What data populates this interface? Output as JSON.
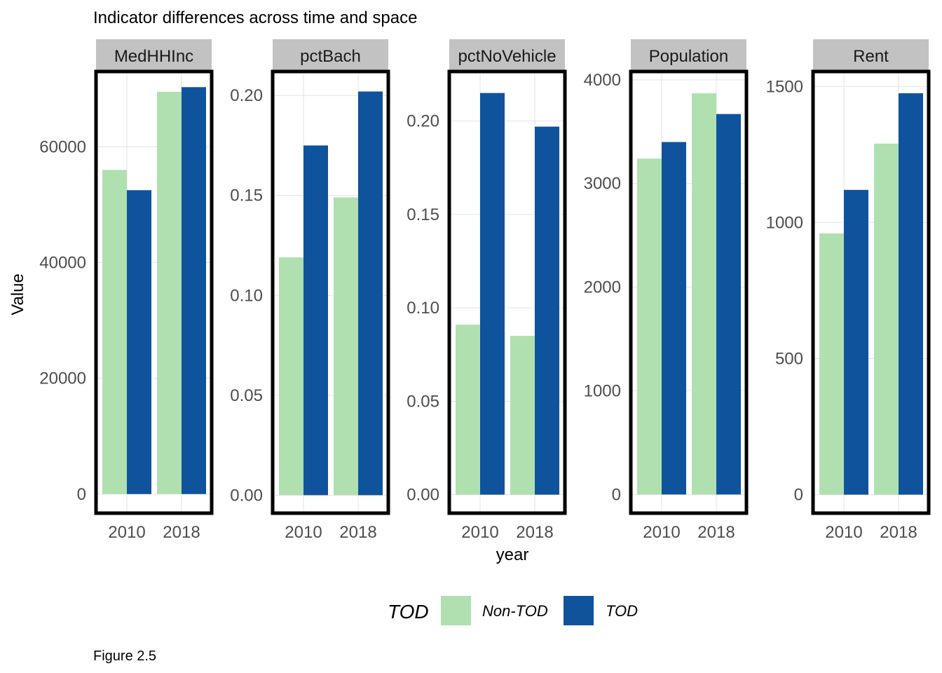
{
  "title": "Indicator differences across time and space",
  "caption": "Figure 2.5",
  "legend": {
    "title": "TOD",
    "items": [
      {
        "label": "Non-TOD",
        "color": "#b0e0b0"
      },
      {
        "label": "TOD",
        "color": "#0f539d"
      }
    ]
  },
  "chart_data": {
    "type": "bar",
    "layout": "faceted",
    "xlabel": "year",
    "ylabel": "Value",
    "categories": [
      "2010",
      "2018"
    ],
    "series_names": [
      "Non-TOD",
      "TOD"
    ],
    "colors": {
      "Non-TOD": "#b0e0b0",
      "TOD": "#0f539d"
    },
    "grid": true,
    "legend_position": "bottom",
    "facets": [
      {
        "label": "MedHHInc",
        "ylim": [
          -3300,
          73000
        ],
        "yticks": [
          0,
          20000,
          40000,
          60000
        ],
        "ytick_labels": [
          "0",
          "20000",
          "40000",
          "60000"
        ],
        "series": [
          {
            "name": "Non-TOD",
            "values": [
              56000,
              69500
            ]
          },
          {
            "name": "TOD",
            "values": [
              52500,
              70300
            ]
          }
        ]
      },
      {
        "label": "pctBach",
        "ylim": [
          -0.009,
          0.212
        ],
        "yticks": [
          0,
          0.05,
          0.1,
          0.15,
          0.2
        ],
        "ytick_labels": [
          "0.00",
          "0.05",
          "0.10",
          "0.15",
          "0.20"
        ],
        "series": [
          {
            "name": "Non-TOD",
            "values": [
              0.119,
              0.149
            ]
          },
          {
            "name": "TOD",
            "values": [
              0.175,
              0.202
            ]
          }
        ]
      },
      {
        "label": "pctNoVehicle",
        "ylim": [
          -0.0099,
          0.2265
        ],
        "yticks": [
          0,
          0.05,
          0.1,
          0.15,
          0.2
        ],
        "ytick_labels": [
          "0.00",
          "0.05",
          "0.10",
          "0.15",
          "0.20"
        ],
        "series": [
          {
            "name": "Non-TOD",
            "values": [
              0.091,
              0.085
            ]
          },
          {
            "name": "TOD",
            "values": [
              0.215,
              0.197
            ]
          }
        ]
      },
      {
        "label": "Population",
        "ylim": [
          -180,
          4080
        ],
        "yticks": [
          0,
          1000,
          2000,
          3000,
          4000
        ],
        "ytick_labels": [
          "0",
          "1000",
          "2000",
          "3000",
          "4000"
        ],
        "series": [
          {
            "name": "Non-TOD",
            "values": [
              3240,
              3870
            ]
          },
          {
            "name": "TOD",
            "values": [
              3400,
              3670
            ]
          }
        ]
      },
      {
        "label": "Rent",
        "ylim": [
          -68,
          1555
        ],
        "yticks": [
          0,
          500,
          1000,
          1500
        ],
        "ytick_labels": [
          "0",
          "500",
          "1000",
          "1500"
        ],
        "series": [
          {
            "name": "Non-TOD",
            "values": [
              960,
              1290
            ]
          },
          {
            "name": "TOD",
            "values": [
              1120,
              1475
            ]
          }
        ]
      }
    ]
  }
}
